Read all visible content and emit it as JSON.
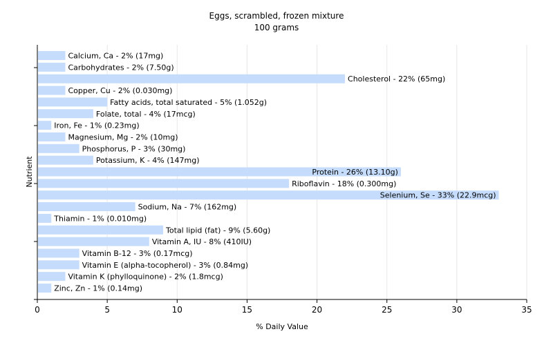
{
  "chart_data": {
    "type": "bar",
    "orientation": "horizontal",
    "title": "Eggs, scrambled, frozen mixture",
    "subtitle": "100 grams",
    "xlabel": "% Daily Value",
    "ylabel": "Nutrient",
    "xlim": [
      0,
      35
    ],
    "xticks": [
      0,
      5,
      10,
      15,
      20,
      25,
      30,
      35
    ],
    "grid": true,
    "bar_color": "#c5dcfc",
    "categories": [
      "Calcium, Ca",
      "Carbohydrates",
      "Cholesterol",
      "Copper, Cu",
      "Fatty acids, total saturated",
      "Folate, total",
      "Iron, Fe",
      "Magnesium, Mg",
      "Phosphorus, P",
      "Potassium, K",
      "Protein",
      "Riboflavin",
      "Selenium, Se",
      "Sodium, Na",
      "Thiamin",
      "Total lipid (fat)",
      "Vitamin A, IU",
      "Vitamin B-12",
      "Vitamin E (alpha-tocopherol)",
      "Vitamin K (phylloquinone)",
      "Zinc, Zn"
    ],
    "values": [
      2,
      2,
      22,
      2,
      5,
      4,
      1,
      2,
      3,
      4,
      26,
      18,
      33,
      7,
      1,
      9,
      8,
      3,
      3,
      2,
      1
    ],
    "labels": [
      "Calcium, Ca - 2% (17mg)",
      "Carbohydrates - 2% (7.50g)",
      "Cholesterol - 22% (65mg)",
      "Copper, Cu - 2% (0.030mg)",
      "Fatty acids, total saturated - 5% (1.052g)",
      "Folate, total - 4% (17mcg)",
      "Iron, Fe - 1% (0.23mg)",
      "Magnesium, Mg - 2% (10mg)",
      "Phosphorus, P - 3% (30mg)",
      "Potassium, K - 4% (147mg)",
      "Protein - 26% (13.10g)",
      "Riboflavin - 18% (0.300mg)",
      "Selenium, Se - 33% (22.9mcg)",
      "Sodium, Na - 7% (162mg)",
      "Thiamin - 1% (0.010mg)",
      "Total lipid (fat) - 9% (5.60g)",
      "Vitamin A, IU - 8% (410IU)",
      "Vitamin B-12 - 3% (0.17mcg)",
      "Vitamin E (alpha-tocopherol) - 3% (0.84mg)",
      "Vitamin K (phylloquinone) - 2% (1.8mcg)",
      "Zinc, Zn - 1% (0.14mg)"
    ]
  }
}
